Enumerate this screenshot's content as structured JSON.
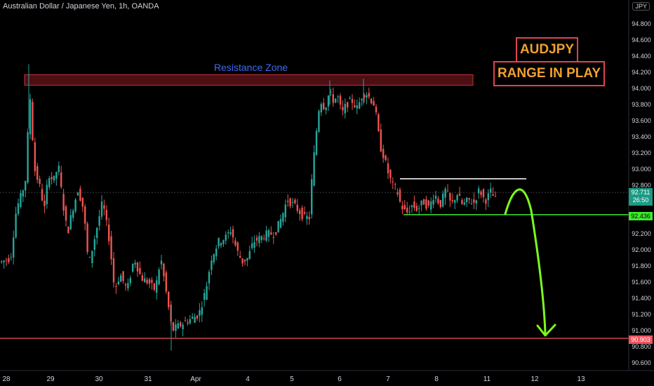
{
  "header": {
    "symbol_title": "Australian Dollar / Japanese Yen, 1h, OANDA",
    "currency": "JPY"
  },
  "annotations": {
    "resistance_label": "Resistance Zone",
    "headline_symbol": "AUDJPY",
    "headline_text": "RANGE IN PLAY"
  },
  "price_tags": {
    "current_price": "92.711",
    "countdown": "26:50",
    "support_price": "92.436",
    "floor_price": "90.903"
  },
  "colors": {
    "background": "#000000",
    "up_candle": "#26a69a",
    "down_candle": "#ef5350",
    "resistance_zone": "#8b1c24",
    "support_line": "#3eea2c",
    "range_top_line": "#ffffff",
    "floor_line": "#f0535d",
    "projection_arrow": "#7cfc1c",
    "label_accent": "#f0a030"
  },
  "chart_data": {
    "type": "candlestick",
    "title": "Australian Dollar / Japanese Yen, 1h, OANDA",
    "x_ticks": [
      "28",
      "29",
      "30",
      "31",
      "Apr",
      "4",
      "5",
      "6",
      "7",
      "8",
      "11",
      "12",
      "13"
    ],
    "y_ticks": [
      "94.800",
      "94.600",
      "94.400",
      "94.200",
      "94.000",
      "93.800",
      "93.600",
      "93.400",
      "93.200",
      "93.000",
      "92.800",
      "92.600",
      "92.400",
      "92.200",
      "92.000",
      "91.800",
      "91.600",
      "91.400",
      "91.200",
      "91.000",
      "90.800",
      "90.600"
    ],
    "ylim": [
      90.5,
      94.95
    ],
    "resistance_zone": [
      94.04,
      94.17
    ],
    "range_top": 92.88,
    "range_bottom": 92.436,
    "floor_level": 90.903,
    "current_price": 92.711,
    "path": [
      [
        0,
        91.85
      ],
      [
        14,
        91.9
      ],
      [
        22,
        92.5
      ],
      [
        30,
        92.7
      ],
      [
        36,
        92.9
      ],
      [
        39,
        93.55
      ],
      [
        42,
        93.9
      ],
      [
        44,
        93.55
      ],
      [
        48,
        93.0
      ],
      [
        55,
        92.8
      ],
      [
        62,
        92.5
      ],
      [
        68,
        92.95
      ],
      [
        75,
        92.85
      ],
      [
        82,
        93.05
      ],
      [
        88,
        92.6
      ],
      [
        95,
        92.2
      ],
      [
        102,
        92.5
      ],
      [
        110,
        92.75
      ],
      [
        118,
        92.5
      ],
      [
        125,
        91.8
      ],
      [
        135,
        92.2
      ],
      [
        145,
        92.6
      ],
      [
        155,
        92.1
      ],
      [
        162,
        91.5
      ],
      [
        170,
        91.7
      ],
      [
        180,
        91.5
      ],
      [
        190,
        91.9
      ],
      [
        200,
        91.65
      ],
      [
        210,
        91.6
      ],
      [
        220,
        91.5
      ],
      [
        228,
        91.9
      ],
      [
        236,
        91.45
      ],
      [
        244,
        91.0
      ],
      [
        252,
        91.05
      ],
      [
        262,
        91.1
      ],
      [
        272,
        91.15
      ],
      [
        282,
        91.2
      ],
      [
        292,
        91.5
      ],
      [
        300,
        91.9
      ],
      [
        310,
        92.1
      ],
      [
        320,
        92.15
      ],
      [
        328,
        92.25
      ],
      [
        336,
        92.0
      ],
      [
        344,
        91.85
      ],
      [
        352,
        91.9
      ],
      [
        360,
        92.1
      ],
      [
        370,
        92.15
      ],
      [
        380,
        92.2
      ],
      [
        390,
        92.2
      ],
      [
        400,
        92.4
      ],
      [
        408,
        92.62
      ],
      [
        418,
        92.55
      ],
      [
        425,
        92.48
      ],
      [
        432,
        92.4
      ],
      [
        440,
        92.4
      ],
      [
        444,
        93.0
      ],
      [
        448,
        93.3
      ],
      [
        452,
        93.7
      ],
      [
        456,
        93.85
      ],
      [
        462,
        93.75
      ],
      [
        468,
        93.95
      ],
      [
        474,
        93.85
      ],
      [
        480,
        93.9
      ],
      [
        486,
        93.68
      ],
      [
        492,
        93.8
      ],
      [
        500,
        93.85
      ],
      [
        508,
        93.75
      ],
      [
        514,
        93.9
      ],
      [
        520,
        93.95
      ],
      [
        526,
        93.88
      ],
      [
        532,
        93.8
      ],
      [
        536,
        93.6
      ],
      [
        540,
        93.3
      ],
      [
        546,
        93.15
      ],
      [
        552,
        92.95
      ],
      [
        558,
        92.8
      ],
      [
        564,
        92.75
      ],
      [
        570,
        92.55
      ],
      [
        578,
        92.45
      ],
      [
        586,
        92.55
      ],
      [
        594,
        92.5
      ],
      [
        602,
        92.6
      ],
      [
        610,
        92.52
      ],
      [
        618,
        92.7
      ],
      [
        626,
        92.55
      ],
      [
        634,
        92.75
      ],
      [
        642,
        92.55
      ],
      [
        650,
        92.7
      ],
      [
        658,
        92.55
      ],
      [
        666,
        92.62
      ],
      [
        674,
        92.58
      ],
      [
        682,
        92.75
      ],
      [
        690,
        92.6
      ],
      [
        698,
        92.72
      ],
      [
        706,
        92.6
      ]
    ]
  }
}
